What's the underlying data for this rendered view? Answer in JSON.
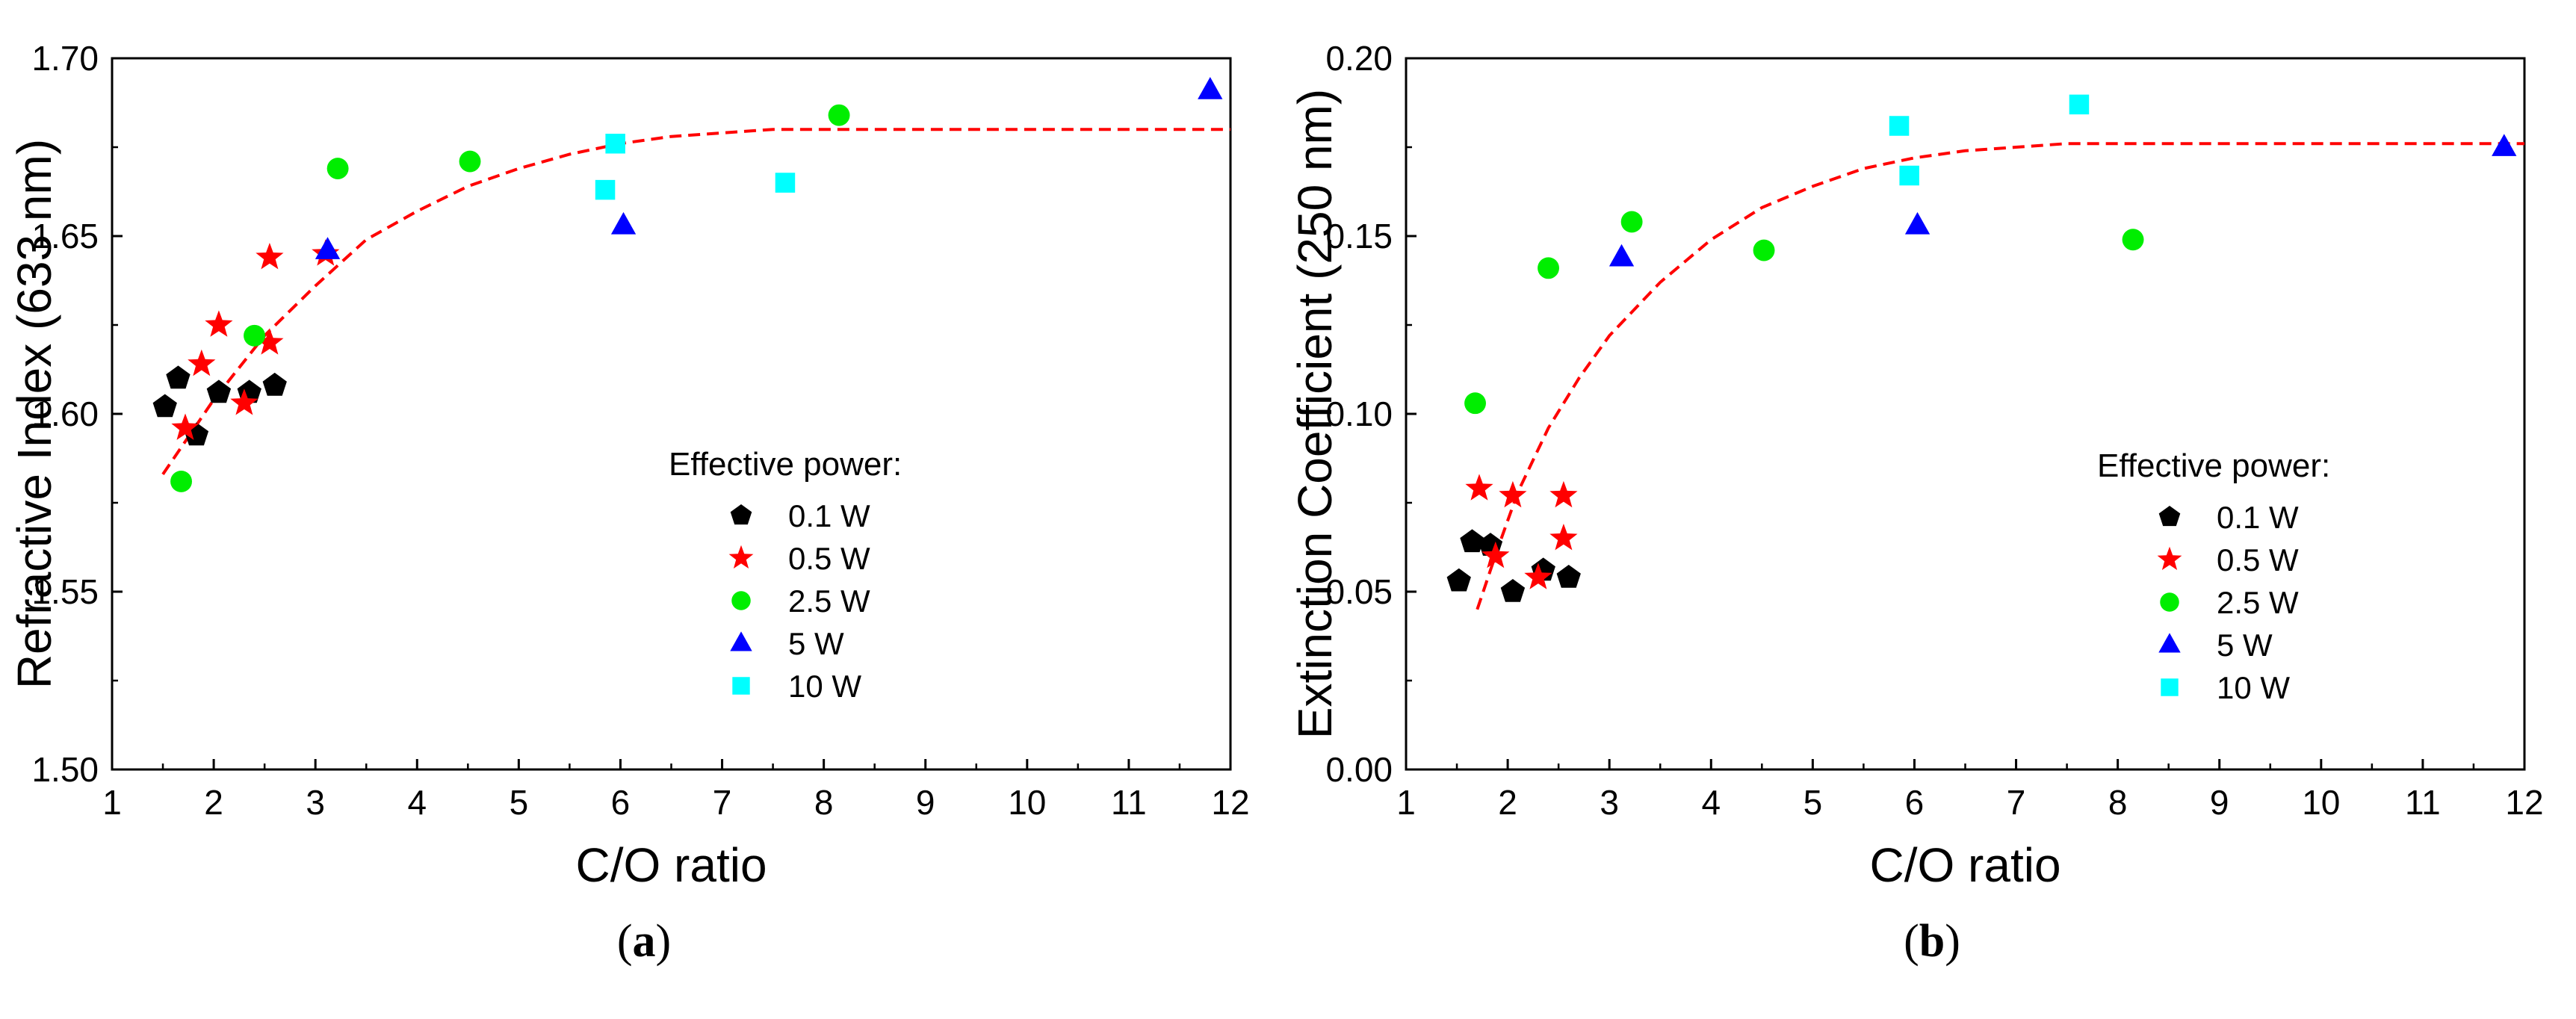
{
  "chart_data": [
    {
      "type": "scatter",
      "panel_label": "a",
      "xlabel": "C/O ratio",
      "ylabel": "Refractive Index (633 nm)",
      "xlim": [
        1,
        12
      ],
      "ylim": [
        1.5,
        1.7
      ],
      "xticks": [
        "1",
        "2",
        "3",
        "4",
        "5",
        "6",
        "7",
        "8",
        "9",
        "10",
        "11",
        "12"
      ],
      "yticks": [
        "1.50",
        "1.55",
        "1.60",
        "1.65",
        "1.70"
      ],
      "legend_title": "Effective power:",
      "legend_position": "center-right",
      "series": [
        {
          "name": "0.1 W",
          "marker": "pentagon",
          "color": "#000000",
          "x": [
            1.52,
            1.65,
            1.83,
            2.05,
            2.35,
            2.6
          ],
          "y": [
            1.602,
            1.61,
            1.594,
            1.606,
            1.606,
            1.608
          ]
        },
        {
          "name": "0.5 W",
          "marker": "star",
          "color": "#ff0000",
          "x": [
            1.72,
            1.88,
            2.05,
            2.3,
            2.55,
            2.55,
            3.1
          ],
          "y": [
            1.596,
            1.614,
            1.625,
            1.603,
            1.62,
            1.644,
            1.645
          ]
        },
        {
          "name": "2.5 W",
          "marker": "circle",
          "color": "#00ee00",
          "x": [
            1.68,
            2.4,
            3.22,
            4.52,
            8.15
          ],
          "y": [
            1.581,
            1.622,
            1.669,
            1.671,
            1.684
          ]
        },
        {
          "name": "5 W",
          "marker": "triangle",
          "color": "#0000ff",
          "x": [
            3.12,
            6.03,
            11.8
          ],
          "y": [
            1.646,
            1.653,
            1.691
          ]
        },
        {
          "name": "10 W",
          "marker": "square",
          "color": "#00ffff",
          "x": [
            5.85,
            5.95,
            7.62
          ],
          "y": [
            1.663,
            1.676,
            1.665
          ]
        }
      ],
      "fit": {
        "color": "#ff0000",
        "style": "dashed",
        "x": [
          1.5,
          2.0,
          2.5,
          3.0,
          3.5,
          4.0,
          4.5,
          5.0,
          5.5,
          6.0,
          6.5,
          7.0,
          7.5,
          8.0,
          9.0,
          10.0,
          11.0,
          12.0
        ],
        "y": [
          1.583,
          1.604,
          1.622,
          1.636,
          1.649,
          1.657,
          1.664,
          1.669,
          1.673,
          1.676,
          1.678,
          1.679,
          1.68,
          1.68,
          1.68,
          1.68,
          1.68,
          1.68
        ]
      }
    },
    {
      "type": "scatter",
      "panel_label": "b",
      "xlabel": "C/O ratio",
      "ylabel": "Extinction Coefficient (250 nm)",
      "xlim": [
        1,
        12
      ],
      "ylim": [
        0.0,
        0.2
      ],
      "xticks": [
        "1",
        "2",
        "3",
        "4",
        "5",
        "6",
        "7",
        "8",
        "9",
        "10",
        "11",
        "12"
      ],
      "yticks": [
        "0.00",
        "0.05",
        "0.10",
        "0.15",
        "0.20"
      ],
      "legend_title": "Effective power:",
      "legend_position": "center-right",
      "series": [
        {
          "name": "0.1 W",
          "marker": "pentagon",
          "color": "#000000",
          "x": [
            1.52,
            1.65,
            1.83,
            2.05,
            2.35,
            2.6
          ],
          "y": [
            0.053,
            0.064,
            0.063,
            0.05,
            0.056,
            0.054
          ]
        },
        {
          "name": "0.5 W",
          "marker": "star",
          "color": "#ff0000",
          "x": [
            1.72,
            1.88,
            2.05,
            2.3,
            2.55,
            2.55
          ],
          "y": [
            0.079,
            0.06,
            0.077,
            0.054,
            0.077,
            0.065
          ]
        },
        {
          "name": "2.5 W",
          "marker": "circle",
          "color": "#00ee00",
          "x": [
            1.68,
            2.4,
            3.22,
            4.52,
            8.15
          ],
          "y": [
            0.103,
            0.141,
            0.154,
            0.146,
            0.149
          ]
        },
        {
          "name": "5 W",
          "marker": "triangle",
          "color": "#0000ff",
          "x": [
            3.12,
            6.03,
            11.8
          ],
          "y": [
            0.144,
            0.153,
            0.175
          ]
        },
        {
          "name": "10 W",
          "marker": "square",
          "color": "#00ffff",
          "x": [
            5.85,
            5.95,
            7.62
          ],
          "y": [
            0.181,
            0.167,
            0.187
          ]
        }
      ],
      "fit": {
        "color": "#ff0000",
        "style": "dashed",
        "x": [
          1.7,
          1.9,
          2.1,
          2.4,
          2.7,
          3.0,
          3.5,
          4.0,
          4.5,
          5.0,
          5.5,
          6.0,
          6.5,
          7.0,
          7.5,
          8.0,
          9.0,
          10.0,
          11.0,
          12.0
        ],
        "y": [
          0.045,
          0.062,
          0.078,
          0.096,
          0.11,
          0.122,
          0.137,
          0.149,
          0.158,
          0.164,
          0.169,
          0.172,
          0.174,
          0.175,
          0.176,
          0.176,
          0.176,
          0.176,
          0.176,
          0.176
        ]
      }
    }
  ]
}
